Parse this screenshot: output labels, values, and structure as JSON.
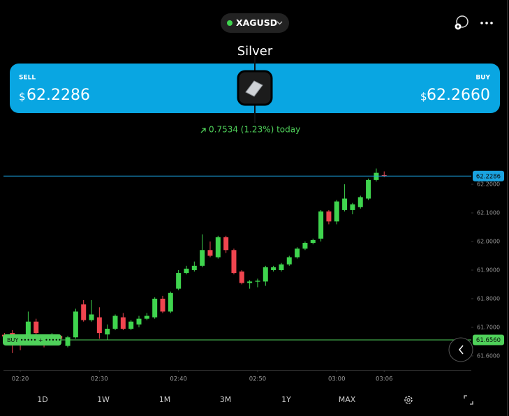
{
  "header": {
    "symbol": "XAGUSD",
    "title": "Silver"
  },
  "quote": {
    "sell_label": "SELL",
    "sell_currency": "$",
    "sell_price": "62.2286",
    "buy_label": "BUY",
    "buy_currency": "$",
    "buy_price": "62.2660",
    "change": "0.7534 (1.23%) today"
  },
  "chart_data": {
    "type": "candlestick",
    "categories": [
      null,
      null,
      "02:20",
      null,
      null,
      null,
      null,
      null,
      null,
      null,
      null,
      null,
      "02:30",
      null,
      null,
      null,
      null,
      null,
      null,
      null,
      null,
      null,
      "02:40",
      null,
      null,
      null,
      null,
      null,
      null,
      null,
      null,
      null,
      "02:50",
      null,
      null,
      null,
      null,
      null,
      null,
      null,
      null,
      null,
      "03:00",
      null,
      null,
      null,
      null,
      null,
      "03:06"
    ],
    "open": [
      61.674,
      61.68,
      61.66,
      61.67,
      61.72,
      61.66,
      61.655,
      61.67,
      61.635,
      61.665,
      61.78,
      61.725,
      61.735,
      61.675,
      61.695,
      61.735,
      61.695,
      61.71,
      61.73,
      61.735,
      61.8,
      61.755,
      61.835,
      61.89,
      61.9,
      61.915,
      61.97,
      61.945,
      62.015,
      61.97,
      61.895,
      61.855,
      61.86,
      61.86,
      61.9,
      61.9,
      61.92,
      61.945,
      61.975,
      61.995,
      62.01,
      62.105,
      62.07,
      62.11,
      62.11,
      62.12,
      62.15,
      62.215,
      62.232
    ],
    "high": [
      61.68,
      61.69,
      61.67,
      61.755,
      61.73,
      61.67,
      61.68,
      61.675,
      61.67,
      61.765,
      61.795,
      61.795,
      61.77,
      61.71,
      61.745,
      61.75,
      61.725,
      61.74,
      61.75,
      61.805,
      61.81,
      61.825,
      61.9,
      61.915,
      61.93,
      62.025,
      62.0,
      62.02,
      62.02,
      61.975,
      61.9,
      61.865,
      61.87,
      61.915,
      61.915,
      61.925,
      61.95,
      61.98,
      62.0,
      62.01,
      62.11,
      62.11,
      62.145,
      62.2,
      62.135,
      62.16,
      62.22,
      62.255,
      62.245
    ],
    "low": [
      61.655,
      61.61,
      61.62,
      61.66,
      61.65,
      61.63,
      61.64,
      61.64,
      61.63,
      61.66,
      61.72,
      61.72,
      61.66,
      61.655,
      61.69,
      61.69,
      61.69,
      61.7,
      61.725,
      61.73,
      61.75,
      61.75,
      61.83,
      61.885,
      61.895,
      61.91,
      61.945,
      61.94,
      61.96,
      61.885,
      61.85,
      61.835,
      61.84,
      61.845,
      61.895,
      61.895,
      61.915,
      61.94,
      61.97,
      61.99,
      62.0,
      62.06,
      62.06,
      62.105,
      62.095,
      62.115,
      62.145,
      62.21,
      62.225
    ],
    "close": [
      61.668,
      61.64,
      61.65,
      61.72,
      61.68,
      61.65,
      61.665,
      61.66,
      61.665,
      61.755,
      61.725,
      61.745,
      61.68,
      61.695,
      61.74,
      61.695,
      61.72,
      61.73,
      61.74,
      61.8,
      61.755,
      61.82,
      61.89,
      61.905,
      61.915,
      61.97,
      61.95,
      62.015,
      61.97,
      61.89,
      61.855,
      61.86,
      61.863,
      61.91,
      61.91,
      61.92,
      61.945,
      61.975,
      61.995,
      62.005,
      62.105,
      62.07,
      62.14,
      62.15,
      62.13,
      62.155,
      62.215,
      62.24,
      62.2286
    ],
    "up_color": "#3fd44e",
    "down_color": "#f0454f",
    "ylim": [
      61.551,
      62.283
    ],
    "yticks": [
      {
        "value": 61.6,
        "label": "61.6000"
      },
      {
        "value": 61.7,
        "label": "61.7000"
      },
      {
        "value": 61.8,
        "label": "61.8000"
      },
      {
        "value": 61.9,
        "label": "61.9000"
      },
      {
        "value": 62.0,
        "label": "62.0000"
      },
      {
        "value": 62.1,
        "label": "62.1000"
      },
      {
        "value": 62.2,
        "label": "62.2000"
      }
    ],
    "price_lines": [
      {
        "value": 62.2286,
        "label": "62.2286",
        "color": "#1aa3e0"
      },
      {
        "value": 61.656,
        "label": "61.6560",
        "color": "#4fd15a",
        "tag": "BUY ••••• + •••••"
      }
    ]
  },
  "ranges": [
    "1D",
    "1W",
    "1M",
    "3M",
    "1Y",
    "MAX"
  ]
}
